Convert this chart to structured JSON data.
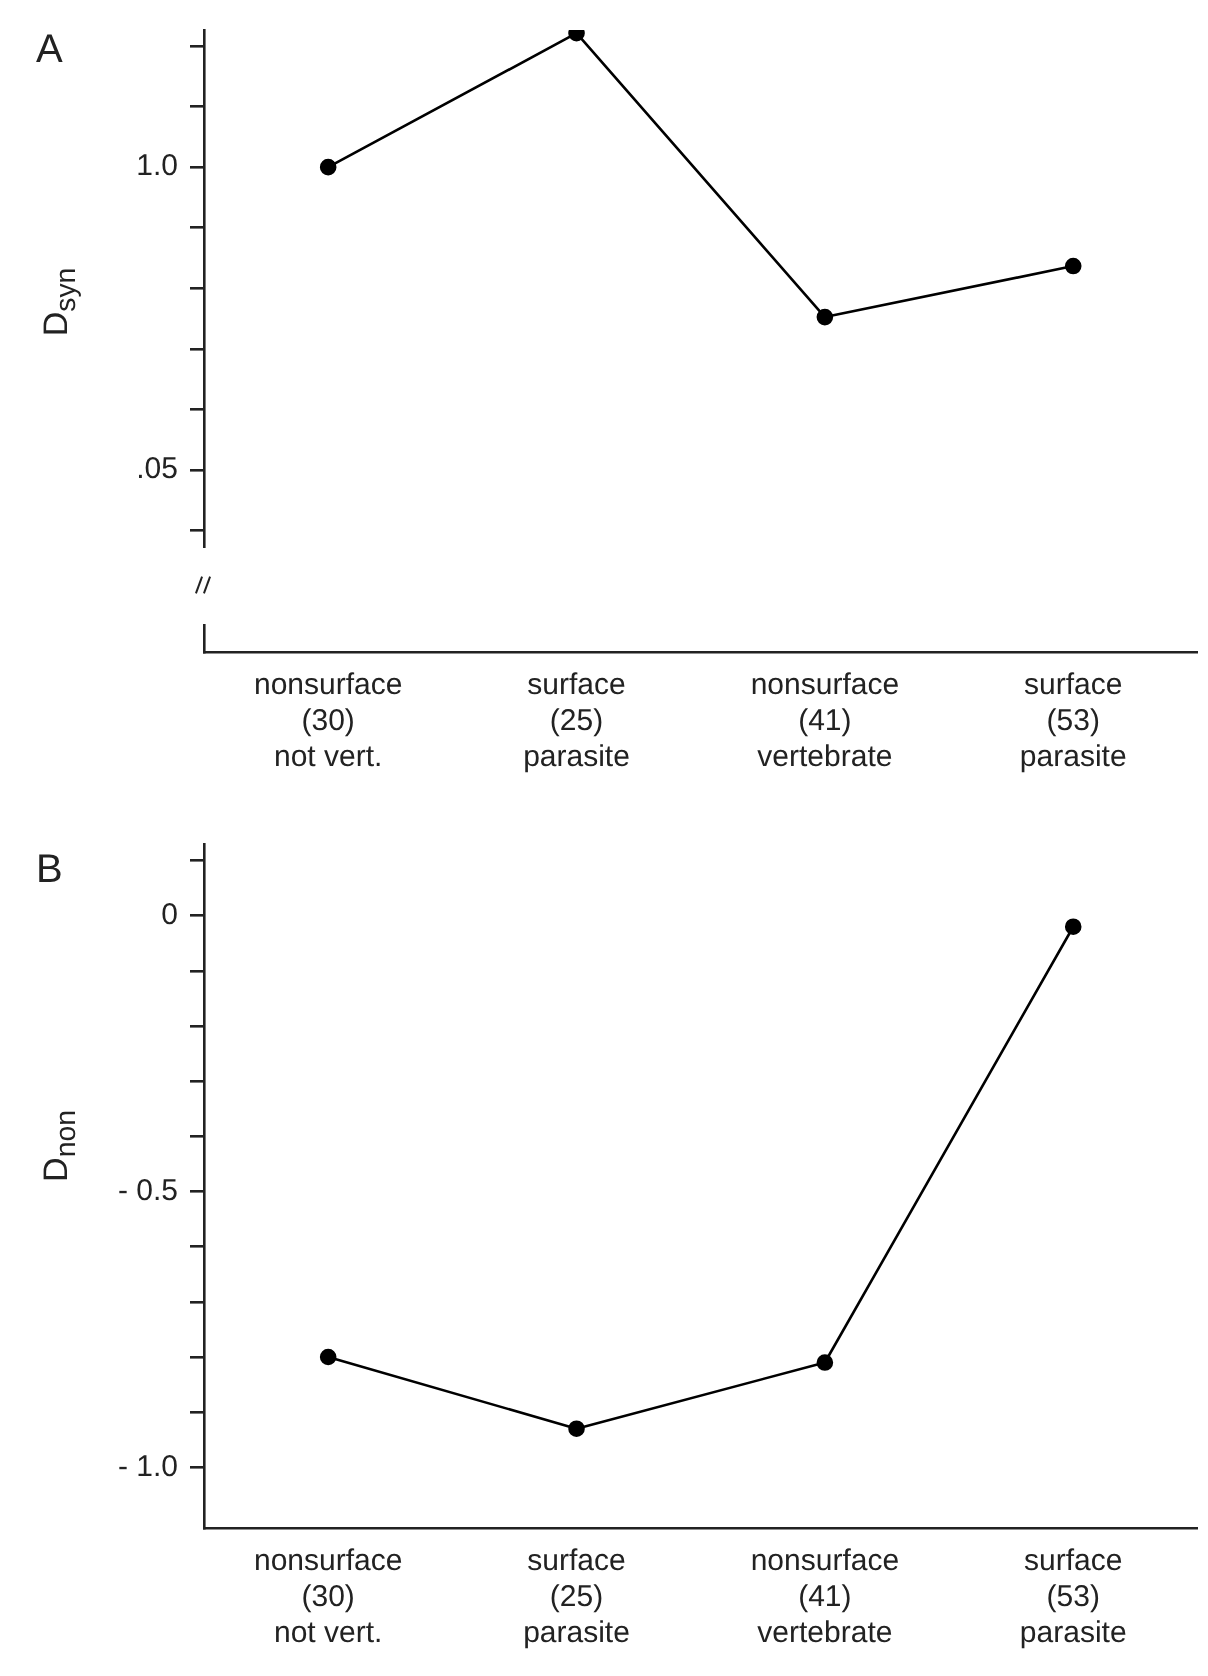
{
  "chart_data": [
    {
      "type": "line",
      "annotations": [
        "A"
      ],
      "ylabel": "D$_{syn}$",
      "categories": [
        "nonsurface\n(30)\nnot vert.",
        "surface\n(25)\nparasite",
        "nonsurface\n(41)\nvertebrate",
        "surface\n(53)\nparasite"
      ],
      "values": [
        1.0,
        1.42,
        0.53,
        0.69
      ],
      "color": "#000000",
      "marker": "circle",
      "ylim": [
        -0.52,
        1.43
      ],
      "yticks": [
        {
          "value": 1.38,
          "label": null
        },
        {
          "value": 1.19,
          "label": null
        },
        {
          "value": 1.0,
          "label": "1.0"
        },
        {
          "value": 0.81,
          "label": null
        },
        {
          "value": 0.62,
          "label": null
        },
        {
          "value": 0.43,
          "label": null
        },
        {
          "value": 0.24,
          "label": null
        },
        {
          "value": 0.05,
          "label": ".05"
        },
        {
          "value": -0.14,
          "label": null
        }
      ],
      "grid": false
    },
    {
      "type": "line",
      "annotations": [
        "B"
      ],
      "ylabel": "D$_{non}$",
      "categories": [
        "nonsurface\n(30)\nnot vert.",
        "surface\n(25)\nparasite",
        "nonsurface\n(41)\nvertebrate",
        "surface\n(53)\nparasite"
      ],
      "values": [
        -0.8,
        -0.93,
        -0.81,
        -0.02
      ],
      "color": "#000000",
      "marker": "circle",
      "ylim": [
        -1.11,
        0.13
      ],
      "yticks": [
        {
          "value": 0.1,
          "label": null
        },
        {
          "value": 0,
          "label": "0"
        },
        {
          "value": -0.1,
          "label": null
        },
        {
          "value": -0.2,
          "label": null
        },
        {
          "value": -0.3,
          "label": null
        },
        {
          "value": -0.4,
          "label": null
        },
        {
          "value": -0.5,
          "label": "- 0.5"
        },
        {
          "value": -0.6,
          "label": null
        },
        {
          "value": -0.7,
          "label": null
        },
        {
          "value": -0.8,
          "label": null
        },
        {
          "value": -0.9,
          "label": null
        },
        {
          "value": -1.0,
          "label": "- 1.0"
        }
      ],
      "grid": false
    }
  ]
}
